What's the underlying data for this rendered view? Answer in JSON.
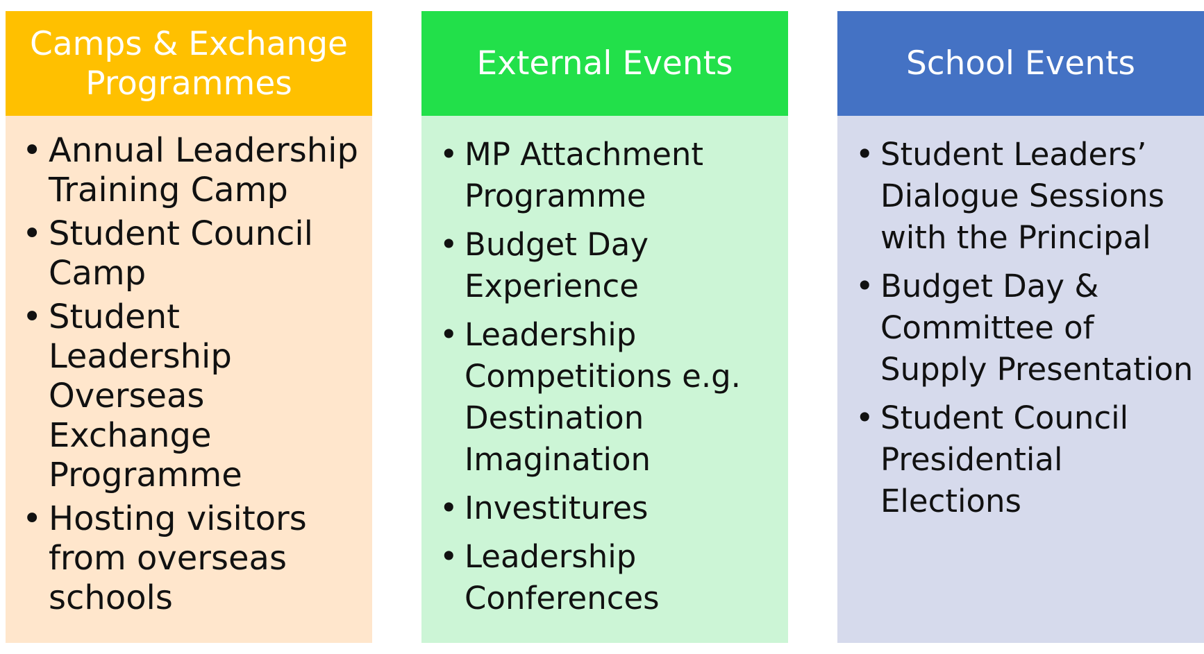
{
  "columns": [
    {
      "title": "Camps & Exchange Programmes",
      "header_color": "#FFC000",
      "body_color": "#FFE6CC",
      "items": [
        "Annual Leadership Training Camp",
        "Student Council Camp",
        "Student Leadership Overseas Exchange Programme",
        "Hosting visitors from overseas schools"
      ]
    },
    {
      "title": "External Events",
      "header_color": "#22E04A",
      "body_color": "#CCF5D6",
      "items": [
        "MP Attachment Programme",
        "Budget Day Experience",
        "Leadership Competitions e.g. Destination Imagination",
        "Investitures",
        "Leadership Conferences"
      ]
    },
    {
      "title": "School Events",
      "header_color": "#4472C4",
      "body_color": "#D6DAEC",
      "items": [
        "Student Leaders’ Dialogue Sessions with the Principal",
        "Budget Day & Committee of Supply Presentation",
        "Student Council Presidential Elections"
      ]
    }
  ],
  "bullet_glyph": "•"
}
